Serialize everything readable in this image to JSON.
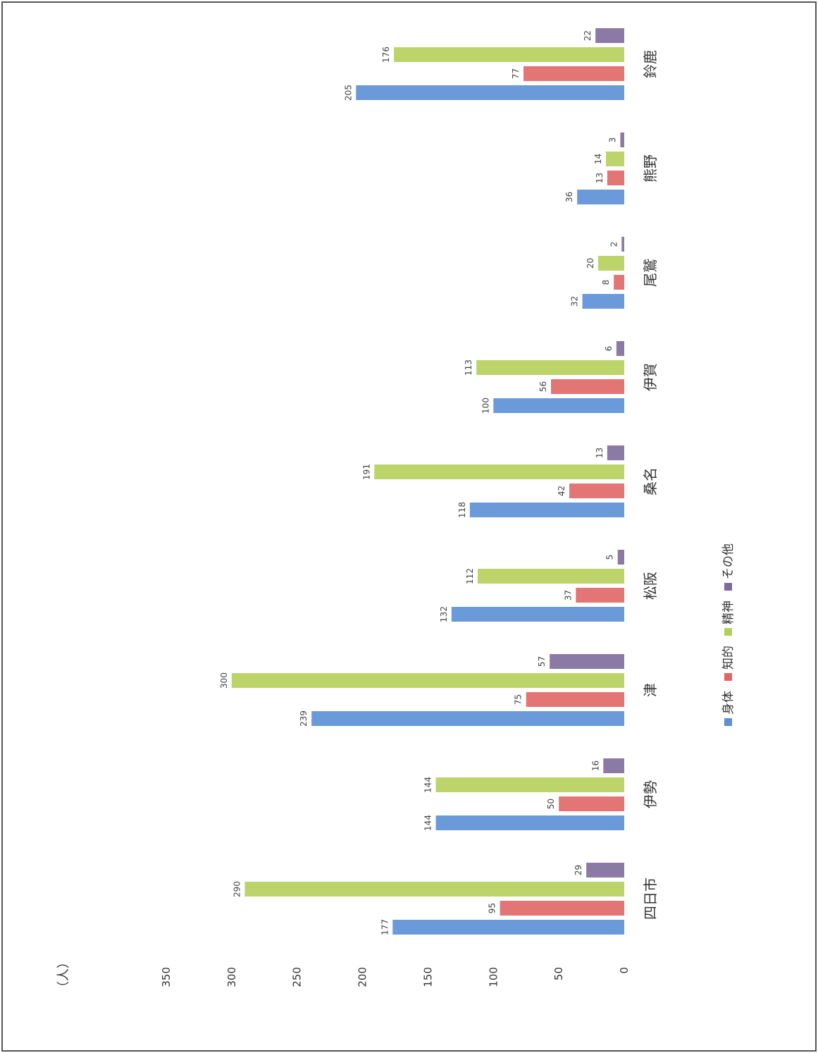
{
  "chart_data": {
    "type": "bar",
    "orientation": "vertical",
    "rotated": "page rotated 90 degrees clockwise",
    "unit_label": "（人）",
    "categories": [
      "四日市",
      "伊勢",
      "津",
      "松阪",
      "桑名",
      "伊賀",
      "尾鷲",
      "熊野",
      "鈴鹿"
    ],
    "series": [
      {
        "name": "身体",
        "color": "#5b8fd6",
        "values": [
          177,
          144,
          239,
          132,
          118,
          100,
          32,
          36,
          205
        ]
      },
      {
        "name": "知的",
        "color": "#e06666",
        "values": [
          95,
          50,
          75,
          37,
          42,
          56,
          8,
          13,
          77
        ]
      },
      {
        "name": "精神",
        "color": "#b5cf5a",
        "values": [
          290,
          144,
          300,
          112,
          191,
          113,
          20,
          14,
          176
        ]
      },
      {
        "name": "その他",
        "color": "#7e6b9c",
        "values": [
          29,
          16,
          57,
          5,
          13,
          6,
          2,
          3,
          22
        ]
      }
    ],
    "yticks": [
      "0",
      "50",
      "100",
      "150",
      "200",
      "250",
      "300",
      "350"
    ],
    "ylim": [
      0,
      350
    ],
    "legend_position": "bottom",
    "grid": false
  }
}
